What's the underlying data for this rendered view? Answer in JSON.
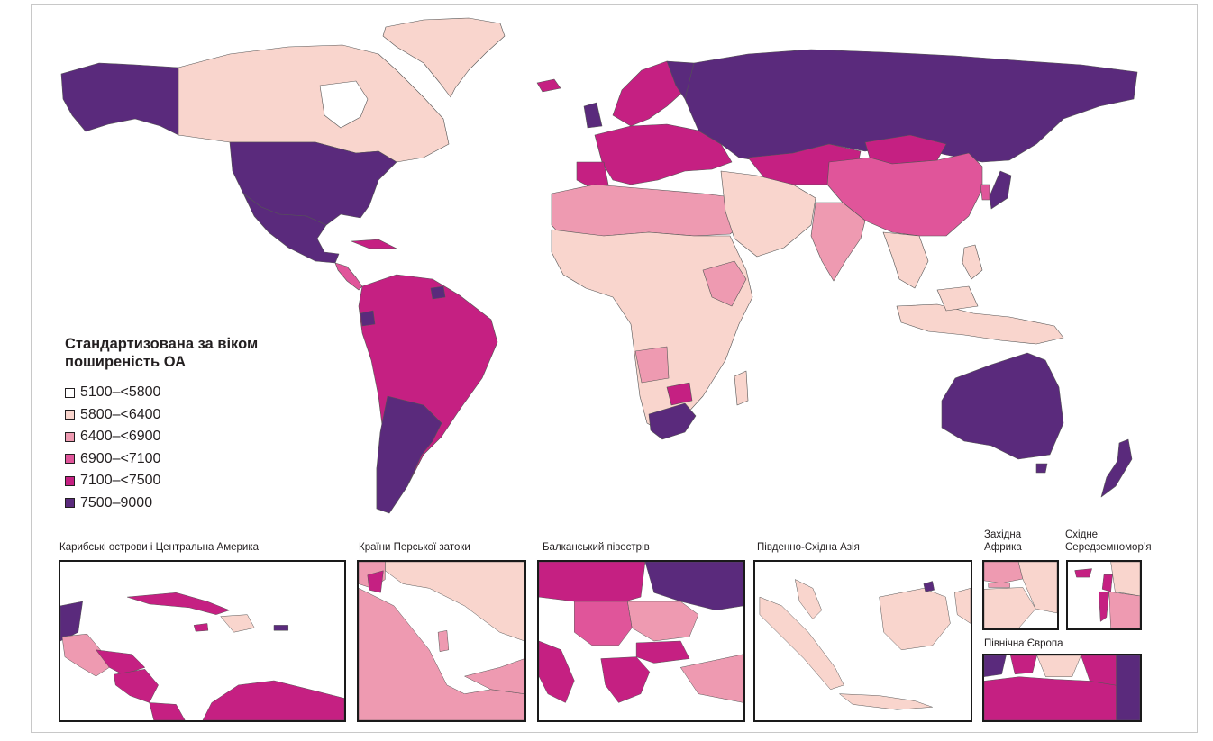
{
  "legend": {
    "title_line1": "Стандартизована за віком",
    "title_line2": "поширеність ОА",
    "items": [
      {
        "label": "5100–<5800",
        "color": "#ffffff"
      },
      {
        "label": "5800–<6400",
        "color": "#f9d5cd"
      },
      {
        "label": "6400–<6900",
        "color": "#ee9ab1"
      },
      {
        "label": "6900–<7100",
        "color": "#e0559a"
      },
      {
        "label": "7100–<7500",
        "color": "#c52082"
      },
      {
        "label": "7500–9000",
        "color": "#5a2a7c"
      }
    ]
  },
  "insets": {
    "caribbean": "Карибські острови і Центральна Америка",
    "gulf": "Країни Перської затоки",
    "balkans": "Балканський півострів",
    "se_asia": "Південно-Східна Азія",
    "west_africa_1": "Західна",
    "west_africa_2": "Африка",
    "east_med_1": "Східне",
    "east_med_2": "Середземномор’я",
    "north_europe": "Північна Європа"
  }
}
